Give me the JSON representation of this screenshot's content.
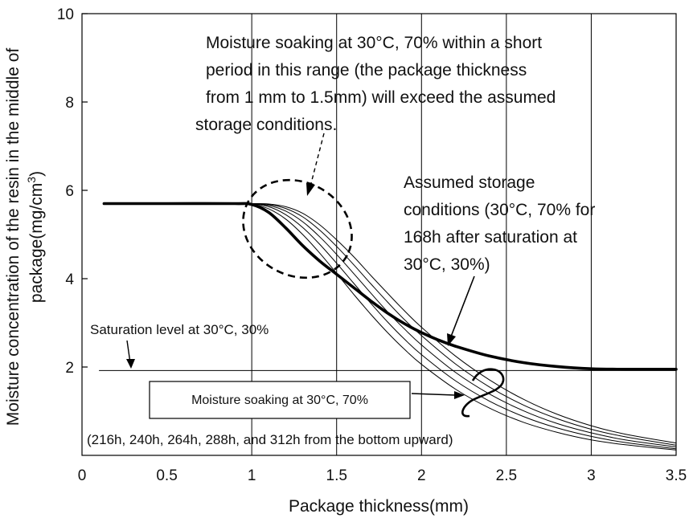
{
  "chart_data": {
    "type": "line",
    "xlabel": "Package thickness(mm)",
    "ylabel_line1": "Moisture concentration of the resin in the middle of",
    "ylabel_line2_prefix": "package(mg/cm",
    "ylabel_line2_sup": "3",
    "ylabel_line2_suffix": ")",
    "xlim": [
      0,
      3.5
    ],
    "ylim": [
      0,
      10
    ],
    "x_ticks": [
      {
        "value": 0,
        "label": "0"
      },
      {
        "value": 0.5,
        "label": "0.5"
      },
      {
        "value": 1,
        "label": "1"
      },
      {
        "value": 1.5,
        "label": "1.5"
      },
      {
        "value": 2,
        "label": "2"
      },
      {
        "value": 2.5,
        "label": "2.5"
      },
      {
        "value": 3,
        "label": "3"
      },
      {
        "value": 3.5,
        "label": "3.5"
      }
    ],
    "y_ticks": [
      {
        "value": 2,
        "label": "2"
      },
      {
        "value": 4,
        "label": "4"
      },
      {
        "value": 6,
        "label": "6"
      },
      {
        "value": 8,
        "label": "8"
      },
      {
        "value": 10,
        "label": "10"
      }
    ],
    "vertical_gridlines": [
      1,
      1.5,
      2,
      2.5,
      3
    ],
    "saturation_level": 1.92,
    "series": [
      {
        "style": "thick",
        "x": [
          0.13,
          0.5,
          0.9,
          1.0,
          1.1,
          1.2,
          1.3,
          1.4,
          1.5,
          1.6,
          1.7,
          1.8,
          1.9,
          2.0,
          2.1,
          2.2,
          2.4,
          2.6,
          2.8,
          3.0,
          3.2,
          3.5
        ],
        "y": [
          5.7,
          5.7,
          5.7,
          5.68,
          5.5,
          5.15,
          4.75,
          4.4,
          4.1,
          3.8,
          3.5,
          3.22,
          2.98,
          2.78,
          2.61,
          2.47,
          2.25,
          2.1,
          2.01,
          1.96,
          1.95,
          1.95
        ]
      },
      {
        "style": "thin",
        "x": [
          1.0,
          1.1,
          1.2,
          1.3,
          1.4,
          1.5,
          1.6,
          1.7,
          1.8,
          1.9,
          2.0,
          2.2,
          2.4,
          2.6,
          2.8,
          3.0,
          3.2,
          3.5
        ],
        "y": [
          5.7,
          5.58,
          5.35,
          5.0,
          4.58,
          4.12,
          3.65,
          3.2,
          2.78,
          2.4,
          2.06,
          1.5,
          1.07,
          0.75,
          0.52,
          0.35,
          0.24,
          0.12
        ]
      },
      {
        "style": "thin",
        "x": [
          1.0,
          1.1,
          1.2,
          1.3,
          1.4,
          1.5,
          1.6,
          1.7,
          1.8,
          1.9,
          2.0,
          2.2,
          2.4,
          2.6,
          2.8,
          3.0,
          3.2,
          3.5
        ],
        "y": [
          5.7,
          5.63,
          5.45,
          5.16,
          4.78,
          4.35,
          3.9,
          3.45,
          3.02,
          2.63,
          2.28,
          1.69,
          1.23,
          0.88,
          0.62,
          0.43,
          0.29,
          0.15
        ]
      },
      {
        "style": "thin",
        "x": [
          1.0,
          1.1,
          1.2,
          1.3,
          1.4,
          1.5,
          1.6,
          1.7,
          1.8,
          1.9,
          2.0,
          2.2,
          2.4,
          2.6,
          2.8,
          3.0,
          3.2,
          3.5
        ],
        "y": [
          5.7,
          5.66,
          5.53,
          5.29,
          4.95,
          4.55,
          4.12,
          3.68,
          3.25,
          2.86,
          2.5,
          1.88,
          1.39,
          1.01,
          0.72,
          0.51,
          0.35,
          0.19
        ]
      },
      {
        "style": "thin",
        "x": [
          1.0,
          1.1,
          1.2,
          1.3,
          1.4,
          1.5,
          1.6,
          1.7,
          1.8,
          1.9,
          2.0,
          2.2,
          2.4,
          2.6,
          2.8,
          3.0,
          3.2,
          3.5
        ],
        "y": [
          5.7,
          5.68,
          5.59,
          5.4,
          5.1,
          4.73,
          4.32,
          3.89,
          3.47,
          3.07,
          2.71,
          2.07,
          1.55,
          1.14,
          0.83,
          0.59,
          0.42,
          0.23
        ]
      },
      {
        "style": "thin",
        "x": [
          1.0,
          1.1,
          1.2,
          1.3,
          1.4,
          1.5,
          1.6,
          1.7,
          1.8,
          1.9,
          2.0,
          2.2,
          2.4,
          2.6,
          2.8,
          3.0,
          3.2,
          3.5
        ],
        "y": [
          5.7,
          5.69,
          5.63,
          5.48,
          5.22,
          4.88,
          4.5,
          4.08,
          3.67,
          3.27,
          2.9,
          2.25,
          1.71,
          1.27,
          0.93,
          0.67,
          0.48,
          0.28
        ]
      }
    ],
    "annotations": {
      "short_period_note": [
        "Moisture soaking at 30°C, 70% within a short",
        "period in this range (the package thickness",
        "from 1 mm to 1.5mm) will exceed the assumed",
        "storage conditions."
      ],
      "assumed_storage_note": [
        "Assumed storage",
        "conditions (30°C, 70% for",
        "168h after saturation at",
        "30°C, 30%)"
      ],
      "saturation_note": "Saturation level at 30°C, 30%",
      "soaking_box_label": "Moisture soaking at 30°C, 70%",
      "soaking_order_note": "(216h, 240h, 264h, 288h, and 312h from the bottom upward)"
    }
  }
}
